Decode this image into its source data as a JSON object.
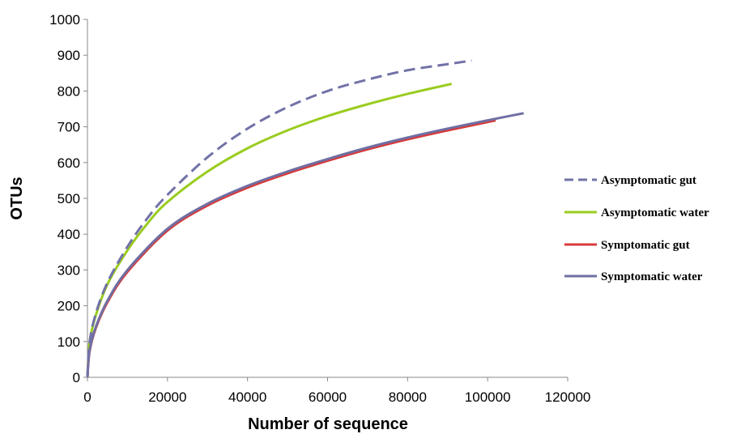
{
  "chart_data": {
    "type": "line",
    "title": "",
    "xlabel": "Number of sequence",
    "ylabel": "OTUs",
    "xlim": [
      0,
      120000
    ],
    "ylim": [
      0,
      1000
    ],
    "x_ticks": [
      "0",
      "20000",
      "40000",
      "60000",
      "80000",
      "100000",
      "120000"
    ],
    "y_ticks": [
      "0",
      "100",
      "200",
      "300",
      "400",
      "500",
      "600",
      "700",
      "800",
      "900",
      "1000"
    ],
    "grid": false,
    "legend_position": "right",
    "series": [
      {
        "name": "Asymptomatic gut",
        "color": "#7272a8",
        "dash": true,
        "x": [
          0,
          500,
          2000,
          5000,
          10000,
          15000,
          20000,
          30000,
          40000,
          50000,
          60000,
          70000,
          80000,
          90000,
          96000
        ],
        "y": [
          0,
          95,
          175,
          265,
          365,
          445,
          510,
          615,
          695,
          755,
          800,
          832,
          858,
          875,
          885
        ]
      },
      {
        "name": "Asymptomatic water",
        "color": "#99cc1f",
        "dash": false,
        "x": [
          0,
          500,
          2000,
          5000,
          10000,
          15000,
          20000,
          30000,
          40000,
          50000,
          60000,
          70000,
          80000,
          91000
        ],
        "y": [
          0,
          95,
          170,
          260,
          355,
          430,
          490,
          575,
          640,
          690,
          730,
          763,
          792,
          820
        ]
      },
      {
        "name": "Symptomatic gut",
        "color": "#d93a3a",
        "dash": false,
        "x": [
          0,
          500,
          2000,
          5000,
          10000,
          20000,
          30000,
          40000,
          50000,
          60000,
          70000,
          80000,
          90000,
          102000
        ],
        "y": [
          0,
          70,
          135,
          210,
          295,
          410,
          480,
          530,
          570,
          605,
          637,
          665,
          690,
          718
        ]
      },
      {
        "name": "Symptomatic water",
        "color": "#6f6fa3",
        "dash": false,
        "x": [
          0,
          500,
          2000,
          5000,
          10000,
          20000,
          30000,
          40000,
          50000,
          60000,
          70000,
          80000,
          90000,
          100000,
          109000
        ],
        "y": [
          0,
          72,
          138,
          214,
          300,
          415,
          485,
          535,
          575,
          610,
          642,
          670,
          695,
          718,
          738
        ]
      }
    ]
  }
}
